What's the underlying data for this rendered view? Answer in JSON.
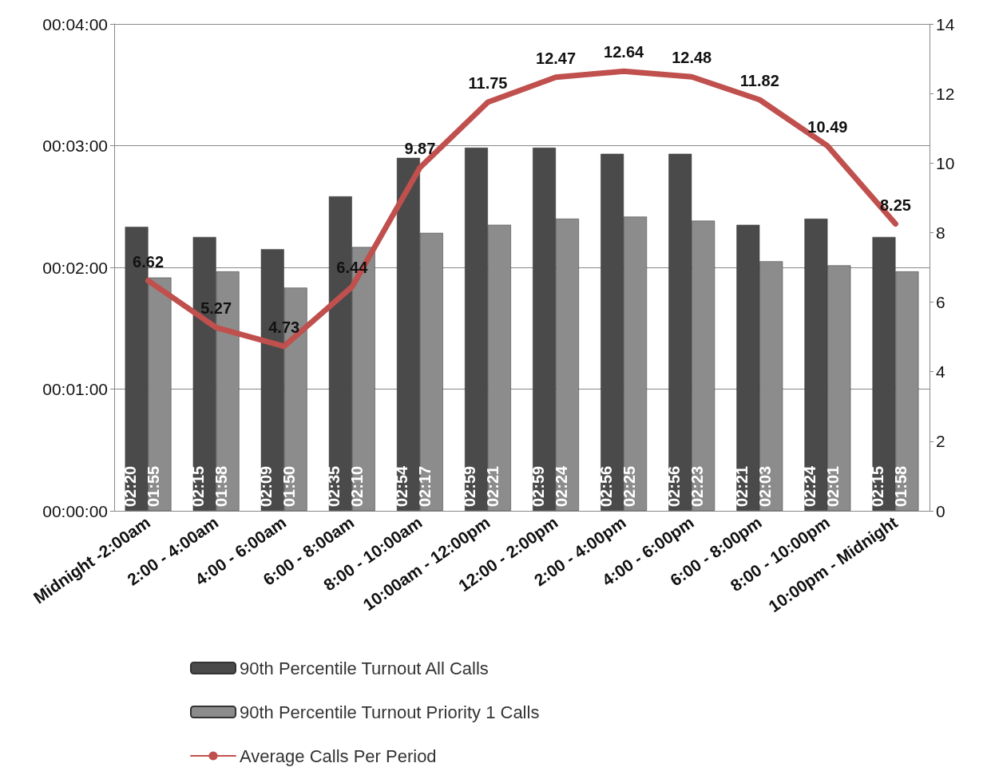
{
  "chart_data": {
    "type": "bar",
    "categories": [
      "Midnight -2:00am",
      "2:00 - 4:00am",
      "4:00 - 6:00am",
      "6:00 - 8:00am",
      "8:00 - 10:00am",
      "10:00am - 12:00pm",
      "12:00 - 2:00pm",
      "2:00 - 4:00pm",
      "4:00 - 6:00pm",
      "6:00 - 8:00pm",
      "8:00 - 10:00pm",
      "10:00pm - Midnight"
    ],
    "series": [
      {
        "name": "90th Percentile Turnout All Calls",
        "color": "#4a4a4a",
        "values": [
          140,
          135,
          129,
          155,
          174,
          179,
          179,
          176,
          176,
          141,
          144,
          135
        ],
        "value_labels": [
          "02:20",
          "02:15",
          "02:09",
          "02:35",
          "02:54",
          "02:59",
          "02:59",
          "02:56",
          "02:56",
          "02:21",
          "02:24",
          "02:15"
        ]
      },
      {
        "name": "90th Percentile Turnout Priority 1 Calls",
        "color": "#8c8c8c",
        "values": [
          115,
          118,
          110,
          130,
          137,
          141,
          144,
          145,
          143,
          123,
          121,
          118
        ],
        "value_labels": [
          "01:55",
          "01:58",
          "01:50",
          "02:10",
          "02:17",
          "02:21",
          "02:24",
          "02:25",
          "02:23",
          "02:03",
          "02:01",
          "01:58"
        ]
      },
      {
        "name": "Average Calls Per Period",
        "type": "line",
        "axis": "y2",
        "color": "#c0504d",
        "data_labels": true,
        "marker": "none",
        "values": [
          6.62,
          5.27,
          4.73,
          6.44,
          9.87,
          11.75,
          12.47,
          12.64,
          12.48,
          11.82,
          10.49,
          8.25
        ]
      }
    ],
    "ylim": [
      0,
      240
    ],
    "yticks": [
      {
        "value": 0,
        "label": "00:00:00"
      },
      {
        "value": 60,
        "label": "00:01:00"
      },
      {
        "value": 120,
        "label": "00:02:00"
      },
      {
        "value": 180,
        "label": "00:03:00"
      },
      {
        "value": 240,
        "label": "00:04:00"
      }
    ],
    "y2lim": [
      0,
      14
    ],
    "y2ticks": [
      0,
      2,
      4,
      6,
      8,
      10,
      12,
      14
    ],
    "grid": "y",
    "legend": "bottom left"
  }
}
